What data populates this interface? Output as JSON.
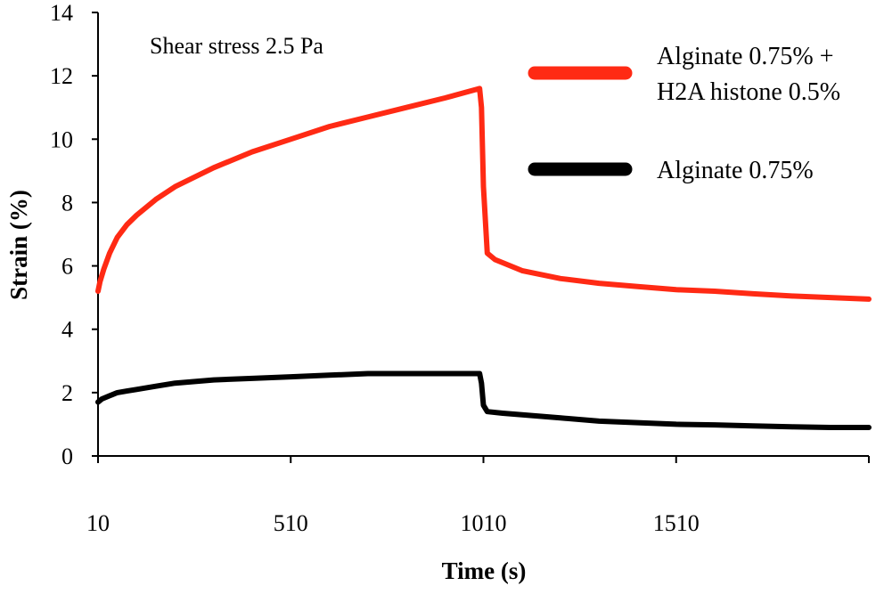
{
  "chart_data": {
    "type": "line",
    "title": "",
    "annotation": "Shear stress 2.5 Pa",
    "xlabel": "Time (s)",
    "ylabel": "Strain (%)",
    "xlim": [
      10,
      2010
    ],
    "ylim": [
      0,
      14
    ],
    "x_ticks": [
      10,
      510,
      1010,
      1510,
      2010
    ],
    "x_tick_labels": [
      "10",
      "510",
      "1010",
      "1510"
    ],
    "y_ticks": [
      0,
      2,
      4,
      6,
      8,
      10,
      12,
      14
    ],
    "y_tick_labels": [
      "0",
      "2",
      "4",
      "6",
      "8",
      "10",
      "12",
      "14"
    ],
    "grid": false,
    "legend_position": "top-right",
    "series": [
      {
        "name": "Alginate 0.75% + H2A histone 0.5%",
        "legend_line1": "Alginate 0.75% +",
        "legend_line2": "H2A histone 0.5%",
        "color": "#ff2a14",
        "x": [
          10,
          15,
          25,
          40,
          60,
          85,
          110,
          160,
          210,
          310,
          410,
          510,
          610,
          710,
          810,
          910,
          1000,
          1005,
          1010,
          1020,
          1040,
          1060,
          1110,
          1210,
          1310,
          1410,
          1510,
          1610,
          1710,
          1810,
          1910,
          2010
        ],
        "values": [
          5.2,
          5.5,
          5.9,
          6.4,
          6.9,
          7.3,
          7.6,
          8.1,
          8.5,
          9.1,
          9.6,
          10.0,
          10.4,
          10.7,
          11.0,
          11.3,
          11.6,
          11.0,
          8.5,
          6.4,
          6.2,
          6.1,
          5.85,
          5.6,
          5.45,
          5.35,
          5.25,
          5.2,
          5.12,
          5.05,
          5.0,
          4.95
        ]
      },
      {
        "name": "Alginate 0.75%",
        "legend_line1": "Alginate 0.75%",
        "legend_line2": "",
        "color": "#000000",
        "x": [
          10,
          20,
          40,
          60,
          85,
          110,
          160,
          210,
          310,
          410,
          510,
          610,
          710,
          810,
          910,
          1000,
          1005,
          1010,
          1020,
          1060,
          1110,
          1210,
          1310,
          1410,
          1510,
          1610,
          1710,
          1810,
          1910,
          2010
        ],
        "values": [
          1.7,
          1.8,
          1.9,
          2.0,
          2.05,
          2.1,
          2.2,
          2.3,
          2.4,
          2.45,
          2.5,
          2.55,
          2.6,
          2.6,
          2.6,
          2.6,
          2.3,
          1.6,
          1.4,
          1.35,
          1.3,
          1.2,
          1.1,
          1.05,
          1.0,
          0.98,
          0.95,
          0.92,
          0.9,
          0.9
        ]
      }
    ]
  }
}
